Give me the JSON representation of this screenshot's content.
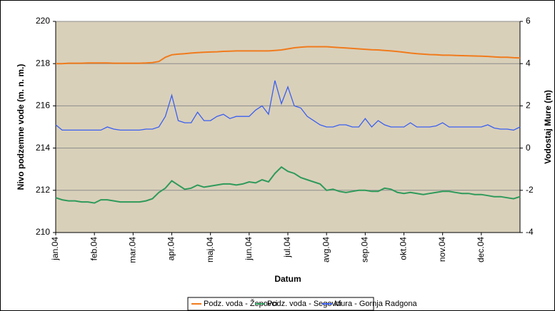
{
  "chart_data": {
    "type": "line",
    "xlabel": "Datum",
    "ylabel": "Nivo podzemne vode (m. n. m.)",
    "y2label": "Vodostaj Mure (m)",
    "categories": [
      "jan.04",
      null,
      null,
      null,
      null,
      null,
      "feb.04",
      null,
      null,
      null,
      null,
      null,
      "mar.04",
      null,
      null,
      null,
      null,
      null,
      "apr.04",
      null,
      null,
      null,
      null,
      null,
      "maj.04",
      null,
      null,
      null,
      null,
      null,
      "jun.04",
      null,
      null,
      null,
      null,
      null,
      "jul.04",
      null,
      null,
      null,
      null,
      null,
      "avg.04",
      null,
      null,
      null,
      null,
      null,
      "sep.04",
      null,
      null,
      null,
      null,
      null,
      "okt.04",
      null,
      null,
      null,
      null,
      null,
      "nov.04",
      null,
      null,
      null,
      null,
      null,
      "dec.04",
      null,
      null,
      null,
      null,
      null,
      null
    ],
    "ylim": [
      210,
      220
    ],
    "yticks": [
      210,
      212,
      214,
      216,
      218,
      220
    ],
    "y2lim": [
      -4,
      6
    ],
    "y2ticks": [
      -4,
      -2,
      0,
      2,
      4,
      6
    ],
    "grid": true,
    "legend": "bottom",
    "series": [
      {
        "name": "Podz. voda - Žepovci",
        "color": "#f07b1c",
        "values": [
          218.0,
          218.0,
          218.02,
          218.02,
          218.02,
          218.03,
          218.03,
          218.03,
          218.03,
          218.02,
          218.02,
          218.02,
          218.02,
          218.02,
          218.03,
          218.05,
          218.1,
          218.3,
          218.42,
          218.45,
          218.47,
          218.5,
          218.52,
          218.54,
          218.55,
          218.56,
          218.58,
          218.59,
          218.6,
          218.6,
          218.6,
          218.6,
          218.6,
          218.6,
          218.62,
          218.65,
          218.7,
          218.75,
          218.78,
          218.8,
          218.8,
          218.8,
          218.8,
          218.78,
          218.76,
          218.74,
          218.72,
          218.7,
          218.68,
          218.66,
          218.65,
          218.62,
          218.6,
          218.57,
          218.54,
          218.5,
          218.47,
          218.45,
          218.43,
          218.42,
          218.4,
          218.4,
          218.39,
          218.38,
          218.37,
          218.36,
          218.35,
          218.34,
          218.32,
          218.3,
          218.3,
          218.28,
          218.27
        ]
      },
      {
        "name": "Podz. voda - Segovci",
        "color": "#2e9a5a",
        "values": [
          211.65,
          211.55,
          211.5,
          211.5,
          211.45,
          211.45,
          211.4,
          211.55,
          211.55,
          211.5,
          211.45,
          211.45,
          211.45,
          211.45,
          211.5,
          211.6,
          211.9,
          212.1,
          212.45,
          212.25,
          212.05,
          212.1,
          212.25,
          212.15,
          212.2,
          212.25,
          212.3,
          212.3,
          212.25,
          212.3,
          212.4,
          212.35,
          212.5,
          212.4,
          212.8,
          213.1,
          212.9,
          212.8,
          212.6,
          212.5,
          212.4,
          212.3,
          212.0,
          212.05,
          211.95,
          211.9,
          211.95,
          212.0,
          212.0,
          211.95,
          211.95,
          212.1,
          212.05,
          211.9,
          211.85,
          211.9,
          211.85,
          211.8,
          211.85,
          211.9,
          211.95,
          211.95,
          211.9,
          211.85,
          211.85,
          211.8,
          211.8,
          211.75,
          211.7,
          211.7,
          211.65,
          211.6,
          211.7
        ]
      },
      {
        "name": "Mura - Gornja Radgona",
        "color": "#3a5ff0",
        "axis": "y2",
        "values": [
          1.1,
          0.85,
          0.85,
          0.85,
          0.85,
          0.85,
          0.85,
          0.85,
          1.0,
          0.9,
          0.85,
          0.85,
          0.85,
          0.85,
          0.9,
          0.9,
          1.0,
          1.5,
          2.5,
          1.3,
          1.2,
          1.2,
          1.7,
          1.3,
          1.3,
          1.5,
          1.6,
          1.4,
          1.5,
          1.5,
          1.5,
          1.8,
          2.0,
          1.6,
          3.2,
          2.1,
          2.9,
          2.0,
          1.9,
          1.5,
          1.3,
          1.1,
          1.0,
          1.0,
          1.1,
          1.1,
          1.0,
          1.0,
          1.4,
          1.0,
          1.3,
          1.1,
          1.0,
          1.0,
          1.0,
          1.2,
          1.0,
          1.0,
          1.0,
          1.05,
          1.2,
          1.0,
          1.0,
          1.0,
          1.0,
          1.0,
          1.0,
          1.1,
          0.95,
          0.9,
          0.9,
          0.85,
          1.0
        ]
      }
    ]
  }
}
